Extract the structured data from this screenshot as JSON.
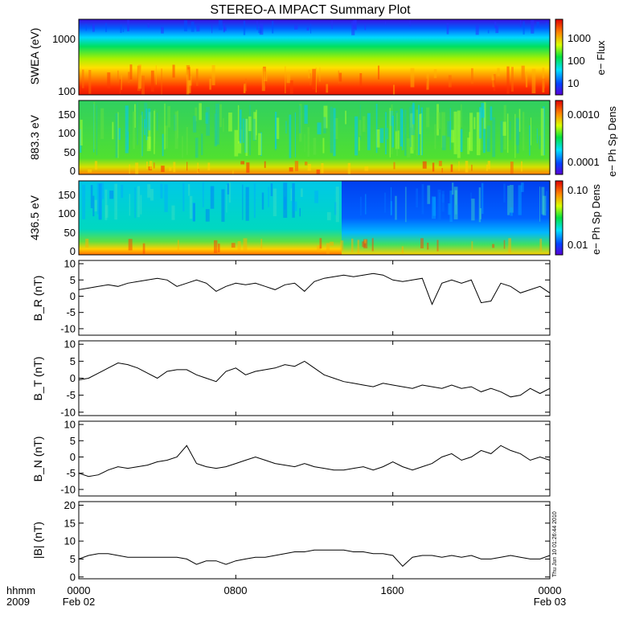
{
  "chart_data": {
    "type": "line",
    "title": "STEREO-A IMPACT Summary Plot",
    "x_tick_labels": [
      "0000",
      "0800",
      "1600",
      "0000"
    ],
    "x_date_labels": [
      "Feb 02",
      "",
      "",
      "Feb 03"
    ],
    "x_corner_labels": [
      "hhmm",
      "2009"
    ],
    "x_range_hours": [
      0,
      24
    ],
    "footer_stamp": "Thu Jun 10 01:26:44 2010",
    "spectrograms": [
      {
        "ylabel": "SWEA (eV)",
        "colorbar_label": "e− Flux",
        "y_ticks": [
          "1000",
          "100"
        ],
        "colorbar_ticks": [
          "1000",
          "100",
          "10"
        ],
        "y_scale": "log"
      },
      {
        "ylabel": "883.3 eV",
        "colorbar_label": "e− Ph Sp Dens",
        "y_ticks": [
          "150",
          "100",
          "50",
          "0"
        ],
        "colorbar_ticks": [
          "0.0010",
          "0.0001"
        ],
        "y_range": [
          0,
          180
        ]
      },
      {
        "ylabel": "436.5 eV",
        "colorbar_label": "e− Ph Sp Dens",
        "y_ticks": [
          "150",
          "100",
          "50",
          "0"
        ],
        "colorbar_ticks": [
          "0.10",
          "0.01"
        ],
        "y_range": [
          0,
          180
        ]
      }
    ],
    "series": [
      {
        "ylabel": "B_R (nT)",
        "ylim": [
          -12,
          11
        ],
        "y_ticks": [
          "10",
          "5",
          "0",
          "-5",
          "-10"
        ],
        "x": [
          0,
          0.5,
          1,
          1.5,
          2,
          2.5,
          3,
          3.5,
          4,
          4.5,
          5,
          5.5,
          6,
          6.5,
          7,
          7.5,
          8,
          8.5,
          9,
          9.5,
          10,
          10.5,
          11,
          11.5,
          12,
          12.5,
          13,
          13.5,
          14,
          14.5,
          15,
          15.5,
          16,
          16.5,
          17,
          17.5,
          18,
          18.5,
          19,
          19.5,
          20,
          20.5,
          21,
          21.5,
          22,
          22.5,
          23,
          23.5,
          24
        ],
        "values": [
          2,
          2.5,
          3,
          3.5,
          3,
          4,
          4.5,
          5,
          5.5,
          5,
          3,
          4,
          5,
          4,
          1.5,
          3,
          4,
          3.5,
          4,
          3,
          2,
          3.5,
          4,
          1.5,
          4.5,
          5.5,
          6,
          6.5,
          6,
          6.5,
          7,
          6.5,
          5,
          4.5,
          5,
          5.5,
          -2.5,
          4,
          5,
          4,
          5,
          -2,
          -1.5,
          4,
          3,
          1,
          2,
          3,
          1
        ]
      },
      {
        "ylabel": "B_T (nT)",
        "ylim": [
          -11,
          11
        ],
        "y_ticks": [
          "10",
          "5",
          "0",
          "-5",
          "-10"
        ],
        "x": [
          0,
          0.5,
          1,
          1.5,
          2,
          2.5,
          3,
          3.5,
          4,
          4.5,
          5,
          5.5,
          6,
          6.5,
          7,
          7.5,
          8,
          8.5,
          9,
          9.5,
          10,
          10.5,
          11,
          11.5,
          12,
          12.5,
          13,
          13.5,
          14,
          14.5,
          15,
          15.5,
          16,
          16.5,
          17,
          17.5,
          18,
          18.5,
          19,
          19.5,
          20,
          20.5,
          21,
          21.5,
          22,
          22.5,
          23,
          23.5,
          24
        ],
        "values": [
          -0.5,
          0,
          1.5,
          3,
          4.5,
          4,
          3,
          1.5,
          0,
          2,
          2.5,
          2.5,
          1,
          0,
          -1,
          2,
          3,
          1,
          2,
          2.5,
          3,
          4,
          3.5,
          5,
          3,
          1,
          0,
          -1,
          -1.5,
          -2,
          -2.5,
          -1.5,
          -2,
          -2.5,
          -3,
          -2,
          -2.5,
          -3,
          -2,
          -3,
          -2.5,
          -4,
          -3,
          -4,
          -5.5,
          -5,
          -3,
          -4.5,
          -3
        ]
      },
      {
        "ylabel": "B_N (nT)",
        "ylim": [
          -12,
          11
        ],
        "y_ticks": [
          "10",
          "5",
          "0",
          "-5",
          "-10"
        ],
        "x": [
          0,
          0.5,
          1,
          1.5,
          2,
          2.5,
          3,
          3.5,
          4,
          4.5,
          5,
          5.5,
          6,
          6.5,
          7,
          7.5,
          8,
          8.5,
          9,
          9.5,
          10,
          10.5,
          11,
          11.5,
          12,
          12.5,
          13,
          13.5,
          14,
          14.5,
          15,
          15.5,
          16,
          16.5,
          17,
          17.5,
          18,
          18.5,
          19,
          19.5,
          20,
          20.5,
          21,
          21.5,
          22,
          22.5,
          23,
          23.5,
          24
        ],
        "values": [
          -5,
          -6,
          -5.5,
          -4,
          -3,
          -3.5,
          -3,
          -2.5,
          -1.5,
          -1,
          0,
          3.5,
          -2,
          -3,
          -3.5,
          -3,
          -2,
          -1,
          0,
          -1,
          -2,
          -2.5,
          -3,
          -2,
          -3,
          -3.5,
          -4,
          -4,
          -3.5,
          -3,
          -4,
          -3,
          -1.5,
          -3,
          -4,
          -3,
          -2,
          0,
          1,
          -1,
          0,
          2,
          1,
          3.5,
          2,
          1,
          -1,
          0,
          -1
        ]
      },
      {
        "ylabel": "|B| (nT)",
        "ylim": [
          -0.5,
          21
        ],
        "y_ticks": [
          "20",
          "15",
          "10",
          "5",
          "0"
        ],
        "x": [
          0,
          0.5,
          1,
          1.5,
          2,
          2.5,
          3,
          3.5,
          4,
          4.5,
          5,
          5.5,
          6,
          6.5,
          7,
          7.5,
          8,
          8.5,
          9,
          9.5,
          10,
          10.5,
          11,
          11.5,
          12,
          12.5,
          13,
          13.5,
          14,
          14.5,
          15,
          15.5,
          16,
          16.5,
          17,
          17.5,
          18,
          18.5,
          19,
          19.5,
          20,
          20.5,
          21,
          21.5,
          22,
          22.5,
          23,
          23.5,
          24
        ],
        "values": [
          5,
          6,
          6.5,
          6.5,
          6,
          5.5,
          5.5,
          5.5,
          5.5,
          5.5,
          5.5,
          5,
          3.5,
          4.5,
          4.5,
          3.5,
          4.5,
          5,
          5.5,
          5.5,
          6,
          6.5,
          7,
          7,
          7.5,
          7.5,
          7.5,
          7.5,
          7,
          7,
          6.5,
          6.5,
          6,
          3,
          5.5,
          6,
          6,
          5.5,
          6,
          5.5,
          6,
          5,
          5,
          5.5,
          6,
          5.5,
          5,
          5,
          6
        ]
      }
    ]
  }
}
